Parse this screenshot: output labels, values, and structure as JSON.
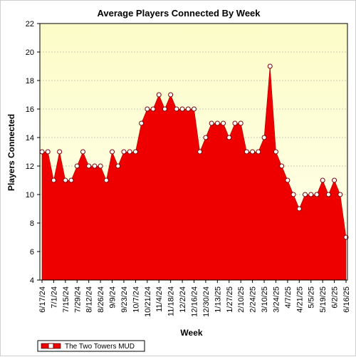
{
  "chart_data": {
    "type": "area",
    "title": "Average Players Connected By Week",
    "xlabel": "Week",
    "ylabel": "Players Connected",
    "ylim": [
      4,
      22
    ],
    "y_ticks": [
      4,
      6,
      8,
      10,
      12,
      14,
      16,
      18,
      20,
      22
    ],
    "grid": "horizontal dashed",
    "legend_position": "bottom-left",
    "x_tick_labels": [
      "6/17/24",
      "7/1/24",
      "7/15/24",
      "7/29/24",
      "8/12/24",
      "8/26/24",
      "9/9/24",
      "9/23/24",
      "10/7/24",
      "10/21/24",
      "11/4/24",
      "11/18/24",
      "12/2/24",
      "12/16/24",
      "12/30/24",
      "1/13/25",
      "1/27/25",
      "2/10/25",
      "2/24/25",
      "3/10/25",
      "3/24/25",
      "4/7/25",
      "4/21/25",
      "5/5/25",
      "5/19/25",
      "6/2/25",
      "6/16/25"
    ],
    "x": [
      "6/17/24",
      "6/24/24",
      "7/1/24",
      "7/8/24",
      "7/15/24",
      "7/22/24",
      "7/29/24",
      "8/5/24",
      "8/12/24",
      "8/19/24",
      "8/26/24",
      "9/2/24",
      "9/9/24",
      "9/16/24",
      "9/23/24",
      "9/30/24",
      "10/7/24",
      "10/14/24",
      "10/21/24",
      "10/28/24",
      "11/4/24",
      "11/11/24",
      "11/18/24",
      "11/25/24",
      "12/2/24",
      "12/9/24",
      "12/16/24",
      "12/23/24",
      "12/30/24",
      "1/6/25",
      "1/13/25",
      "1/20/25",
      "1/27/25",
      "2/3/25",
      "2/10/25",
      "2/17/25",
      "2/24/25",
      "3/3/25",
      "3/10/25",
      "3/17/25",
      "3/24/25",
      "3/31/25",
      "4/7/25",
      "4/14/25",
      "4/21/25",
      "4/28/25",
      "5/5/25",
      "5/12/25",
      "5/19/25",
      "5/26/25",
      "6/2/25",
      "6/9/25",
      "6/16/25"
    ],
    "series": [
      {
        "name": "The Two Towers MUD",
        "color": "#ee0000",
        "values": [
          13,
          13,
          11,
          13,
          11,
          11,
          12,
          13,
          12,
          12,
          12,
          11,
          13,
          12,
          13,
          13,
          13,
          15,
          16,
          16,
          17,
          16,
          17,
          16,
          16,
          16,
          16,
          13,
          14,
          15,
          15,
          15,
          14,
          15,
          15,
          13,
          13,
          13,
          14,
          19,
          13,
          12,
          11,
          10,
          9,
          10,
          10,
          10,
          11,
          10,
          11,
          10,
          7
        ]
      }
    ],
    "colors": {
      "area_fill": "#ee0000",
      "plot_background_top": "#fcfcc8",
      "plot_background_bottom": "#ffffee",
      "marker_fill": "#ffffff",
      "grid": "#999999"
    }
  }
}
